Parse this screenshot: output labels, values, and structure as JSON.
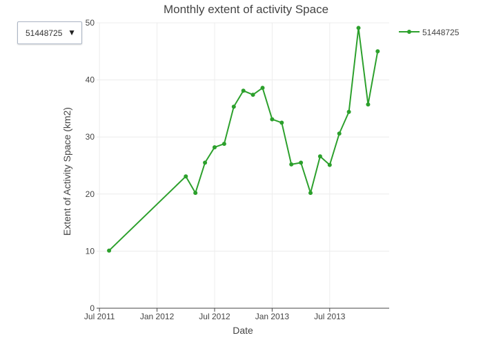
{
  "title": "Monthly extent of activity Space",
  "dropdown": {
    "selected": "51448725",
    "caret": "▼"
  },
  "legend": {
    "label": "51448725"
  },
  "colors": {
    "series": "#2ca02c",
    "grid": "#ececec",
    "axis": "#444444",
    "text": "#444444"
  },
  "chart_data": {
    "type": "line",
    "title": "Monthly extent of activity Space",
    "xlabel": "Date",
    "ylabel": "Extent of Activity Space (km2)",
    "x_ticks": [
      "Jul 2011",
      "Jan 2012",
      "Jul 2012",
      "Jan 2013",
      "Jul 2013"
    ],
    "y_ticks": [
      0,
      10,
      20,
      30,
      40,
      50
    ],
    "ylim": [
      0,
      50
    ],
    "grid": true,
    "legend_position": "top-right",
    "series": [
      {
        "name": "51448725",
        "x": [
          "2011-08",
          "2012-04",
          "2012-05",
          "2012-06",
          "2012-07",
          "2012-08",
          "2012-09",
          "2012-10",
          "2012-11",
          "2012-12",
          "2013-01",
          "2013-02",
          "2013-03",
          "2013-04",
          "2013-05",
          "2013-06",
          "2013-07",
          "2013-08",
          "2013-09",
          "2013-10",
          "2013-11",
          "2013-12"
        ],
        "values": [
          10.1,
          23.1,
          20.2,
          25.5,
          28.2,
          28.8,
          35.3,
          38.1,
          37.4,
          38.6,
          33.1,
          32.5,
          25.2,
          25.5,
          20.2,
          26.6,
          25.1,
          30.6,
          34.4,
          49.1,
          35.7,
          45.0
        ]
      }
    ]
  }
}
